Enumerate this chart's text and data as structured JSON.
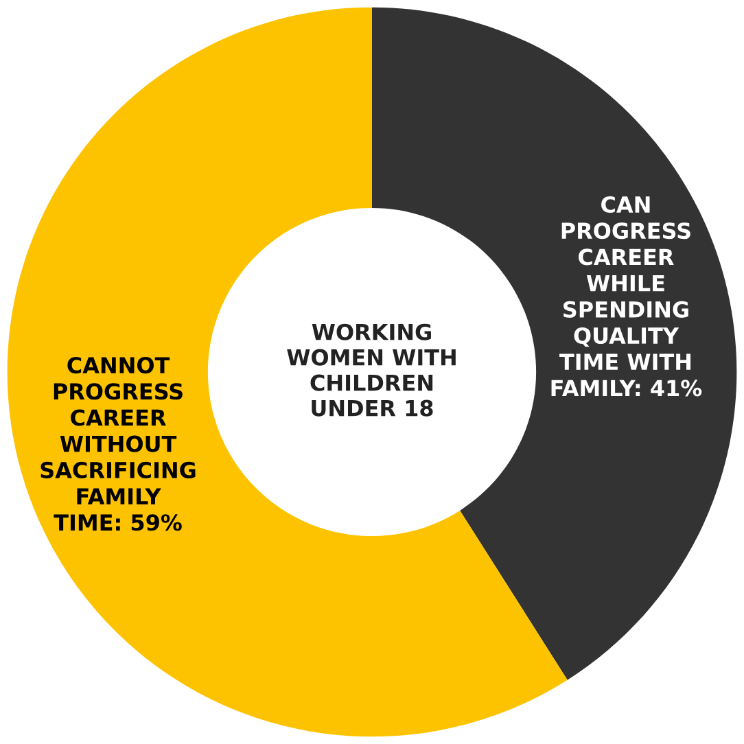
{
  "chart_data": {
    "type": "donut",
    "title": "WORKING\nWOMEN WITH\nCHILDREN\nUNDER 18",
    "categories": [
      "CAN\nPROGRESS\nCAREER\nWHILE\nSPENDING\nQUALITY\nTIME WITH\nFAMILY",
      "CANNOT\nPROGRESS\nCAREER\nWITHOUT\nSACRIFICING\nFAMILY\nTIME"
    ],
    "values": [
      41,
      59
    ],
    "value_labels": [
      "41%",
      "59%"
    ],
    "colors": [
      "#333333",
      "#fdc300"
    ]
  }
}
